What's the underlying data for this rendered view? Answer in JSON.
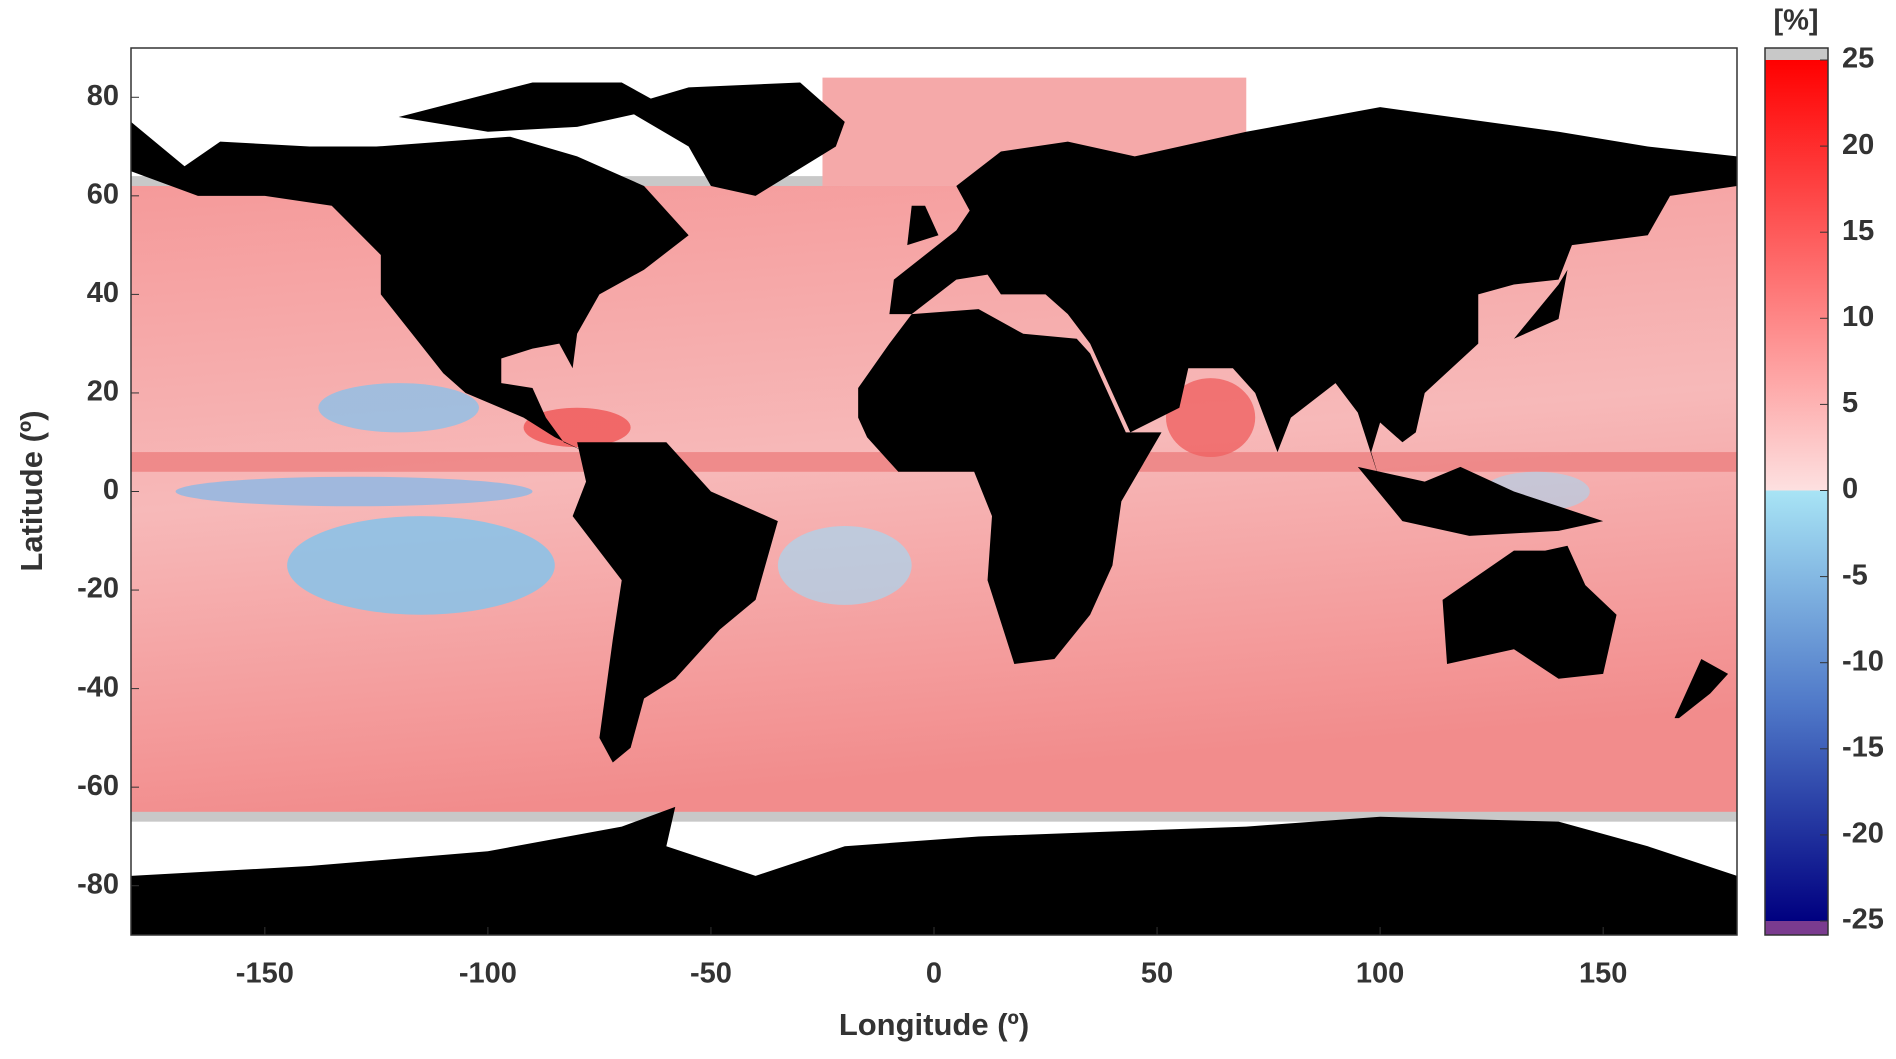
{
  "chart_data": {
    "type": "map",
    "xlabel": "Longitude (º)",
    "ylabel": "Latitude (º)",
    "xlim": [
      -180,
      180
    ],
    "ylim": [
      -90,
      90
    ],
    "xticks": [
      -150,
      -100,
      -50,
      0,
      50,
      100,
      150
    ],
    "yticks": [
      -80,
      -60,
      -40,
      -20,
      0,
      20,
      40,
      60,
      80
    ],
    "colorbar": {
      "label": "[%]",
      "clim": [
        -25,
        25
      ],
      "ticks": [
        -25,
        -20,
        -15,
        -10,
        -5,
        0,
        5,
        10,
        15,
        20,
        25
      ]
    }
  }
}
